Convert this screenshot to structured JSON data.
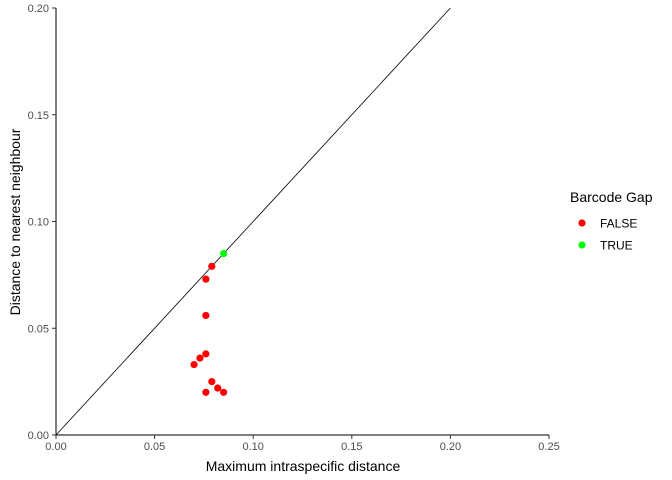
{
  "chart_data": {
    "type": "scatter",
    "xlabel": "Maximum intraspecific distance",
    "ylabel": "Distance to nearest neighbour",
    "xlim": [
      0,
      0.25
    ],
    "ylim": [
      0,
      0.2
    ],
    "x_ticks": [
      "0.00",
      "0.05",
      "0.10",
      "0.15",
      "0.20",
      "0.25"
    ],
    "y_ticks": [
      "0.00",
      "0.05",
      "0.10",
      "0.15",
      "0.20"
    ],
    "x_tick_values": [
      0,
      0.05,
      0.1,
      0.15,
      0.2,
      0.25
    ],
    "y_tick_values": [
      0,
      0.05,
      0.1,
      0.15,
      0.2
    ],
    "grid": false,
    "reference_line": {
      "type": "identity",
      "from": [
        0,
        0
      ],
      "to": [
        0.2,
        0.2
      ],
      "color": "#000000"
    },
    "legend": {
      "title": "Barcode Gap",
      "placement": "right",
      "entries": [
        {
          "label": "FALSE",
          "color": "#ff0000"
        },
        {
          "label": "TRUE",
          "color": "#00ff00"
        }
      ]
    },
    "series": [
      {
        "name": "FALSE",
        "color": "#ff0000",
        "points": [
          {
            "x": 0.079,
            "y": 0.079
          },
          {
            "x": 0.076,
            "y": 0.073
          },
          {
            "x": 0.076,
            "y": 0.056
          },
          {
            "x": 0.076,
            "y": 0.038
          },
          {
            "x": 0.073,
            "y": 0.036
          },
          {
            "x": 0.07,
            "y": 0.033
          },
          {
            "x": 0.079,
            "y": 0.025
          },
          {
            "x": 0.082,
            "y": 0.022
          },
          {
            "x": 0.076,
            "y": 0.02
          },
          {
            "x": 0.085,
            "y": 0.02
          }
        ]
      },
      {
        "name": "TRUE",
        "color": "#00ff00",
        "points": [
          {
            "x": 0.085,
            "y": 0.085
          }
        ]
      }
    ]
  }
}
